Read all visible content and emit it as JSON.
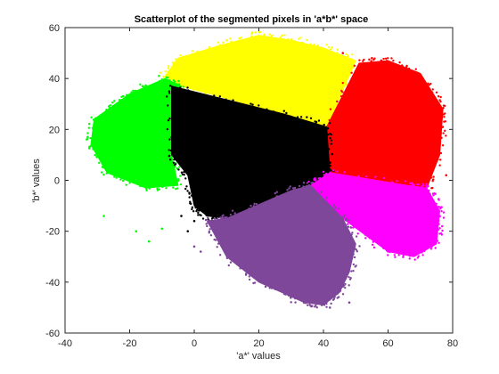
{
  "chart_data": {
    "type": "scatter",
    "title": "Scatterplot of the segmented pixels in 'a*b*' space",
    "xlabel": "'a*' values",
    "ylabel": "'b*' values",
    "xlim": [
      -40,
      80
    ],
    "ylim": [
      -60,
      60
    ],
    "xticks": [
      -40,
      -20,
      0,
      20,
      40,
      60,
      80
    ],
    "yticks": [
      -60,
      -40,
      -20,
      0,
      20,
      40,
      60
    ],
    "grid": false,
    "legend": "none",
    "series": [
      {
        "color": "#ffff00",
        "region": [
          [
            -9,
            41
          ],
          [
            -5,
            48
          ],
          [
            8,
            53
          ],
          [
            20,
            57
          ],
          [
            30,
            55
          ],
          [
            40,
            52
          ],
          [
            50,
            47
          ],
          [
            41,
            21
          ],
          [
            28,
            26
          ],
          [
            -4,
            37
          ]
        ]
      },
      {
        "color": "#ff0000",
        "region": [
          [
            41,
            21
          ],
          [
            51,
            46
          ],
          [
            60,
            47
          ],
          [
            70,
            42
          ],
          [
            77,
            28
          ],
          [
            76,
            10
          ],
          [
            72,
            -3
          ],
          [
            66,
            -2
          ],
          [
            42,
            3
          ]
        ]
      },
      {
        "color": "#00ff00",
        "region": [
          [
            -4,
            37
          ],
          [
            -9,
            40
          ],
          [
            -20,
            34
          ],
          [
            -31,
            24
          ],
          [
            -32,
            14
          ],
          [
            -27,
            3
          ],
          [
            -15,
            -3
          ],
          [
            -5,
            -2
          ],
          [
            -7,
            10
          ]
        ]
      },
      {
        "color": "#000000",
        "region": [
          [
            -7,
            37
          ],
          [
            28,
            26
          ],
          [
            41,
            21
          ],
          [
            42,
            3
          ],
          [
            36,
            -2
          ],
          [
            30,
            -4
          ],
          [
            10,
            -15
          ],
          [
            4,
            -14
          ],
          [
            0,
            -10
          ],
          [
            -2,
            2
          ],
          [
            -7,
            10
          ]
        ]
      },
      {
        "color": "#ff00ff",
        "region": [
          [
            42,
            3
          ],
          [
            66,
            -2
          ],
          [
            72,
            -3
          ],
          [
            76,
            -12
          ],
          [
            75,
            -25
          ],
          [
            68,
            -30
          ],
          [
            60,
            -28
          ],
          [
            46,
            -15
          ],
          [
            36,
            -2
          ]
        ]
      },
      {
        "color": "#7e479a",
        "region": [
          [
            36,
            -2
          ],
          [
            46,
            -15
          ],
          [
            50,
            -25
          ],
          [
            48,
            -36
          ],
          [
            45,
            -44
          ],
          [
            40,
            -49
          ],
          [
            34,
            -48
          ],
          [
            20,
            -40
          ],
          [
            10,
            -30
          ],
          [
            4,
            -16
          ],
          [
            10,
            -15
          ],
          [
            30,
            -4
          ]
        ]
      }
    ],
    "outliers": [
      {
        "color": "#00ff00",
        "points": [
          [
            -28,
            -14
          ],
          [
            -10,
            -19
          ],
          [
            -14,
            -24
          ],
          [
            -18,
            -20
          ],
          [
            -33,
            17
          ],
          [
            -16,
            37
          ]
        ]
      },
      {
        "color": "#000000",
        "points": [
          [
            -2,
            -20
          ],
          [
            0,
            -16
          ],
          [
            -4,
            -14
          ]
        ]
      },
      {
        "color": "#7e479a",
        "points": [
          [
            0,
            -26
          ],
          [
            2,
            -28
          ],
          [
            48,
            -48
          ],
          [
            42,
            -50
          ]
        ]
      },
      {
        "color": "#ff0000",
        "points": [
          [
            46,
            50
          ],
          [
            78,
            2
          ],
          [
            55,
            48
          ]
        ]
      },
      {
        "color": "#ffff00",
        "points": [
          [
            18,
            58
          ],
          [
            10,
            55
          ]
        ]
      }
    ]
  }
}
